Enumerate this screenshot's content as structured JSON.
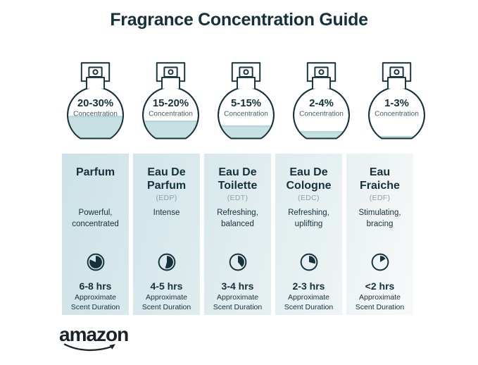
{
  "title": "Fragrance Concentration Guide",
  "brand": {
    "name": "amazon"
  },
  "columns": [
    {
      "name": "Parfum",
      "abbr": "",
      "concentration": "20-30%",
      "concentration_label": "Concentration",
      "fill_percent": 46,
      "description": "Powerful, concentrated",
      "duration": "6-8 hrs",
      "duration_label": "Approximate Scent Duration",
      "duration_angle": 295
    },
    {
      "name": "Eau De Parfum",
      "abbr": "(EDP)",
      "concentration": "15-20%",
      "concentration_label": "Concentration",
      "fill_percent": 37,
      "description": "Intense",
      "duration": "4-5 hrs",
      "duration_label": "Approximate Scent Duration",
      "duration_angle": 195
    },
    {
      "name": "Eau De Toilette",
      "abbr": "(EDT)",
      "concentration": "5-15%",
      "concentration_label": "Concentration",
      "fill_percent": 28,
      "description": "Refreshing, balanced",
      "duration": "3-4 hrs",
      "duration_label": "Approximate Scent Duration",
      "duration_angle": 140
    },
    {
      "name": "Eau De Cologne",
      "abbr": "(EDC)",
      "concentration": "2-4%",
      "concentration_label": "Concentration",
      "fill_percent": 17,
      "description": "Refreshing, uplifting",
      "duration": "2-3 hrs",
      "duration_label": "Approximate Scent Duration",
      "duration_angle": 105
    },
    {
      "name": "Eau Fraiche",
      "abbr": "(EDF)",
      "concentration": "1-3%",
      "concentration_label": "Concentration",
      "fill_percent": 8,
      "description": "Stimulating, bracing",
      "duration": "<2 hrs",
      "duration_label": "Approximate Scent Duration",
      "duration_angle": 58
    }
  ],
  "colors": {
    "ink": "#14313c",
    "sublabel": "#44606b",
    "muted": "#8fa0a6",
    "liquid": "#c7e1e3",
    "liquid_line": "#b6d6d9",
    "card_backgrounds": [
      [
        "#cde3e8",
        "#d9e9ec"
      ],
      [
        "#d3e6ea",
        "#dfecef"
      ],
      [
        "#d9e9ec",
        "#e7f0f1"
      ],
      [
        "#e0edef",
        "#eef4f5"
      ],
      [
        "#eaf1f2",
        "#f8fafa"
      ]
    ]
  }
}
